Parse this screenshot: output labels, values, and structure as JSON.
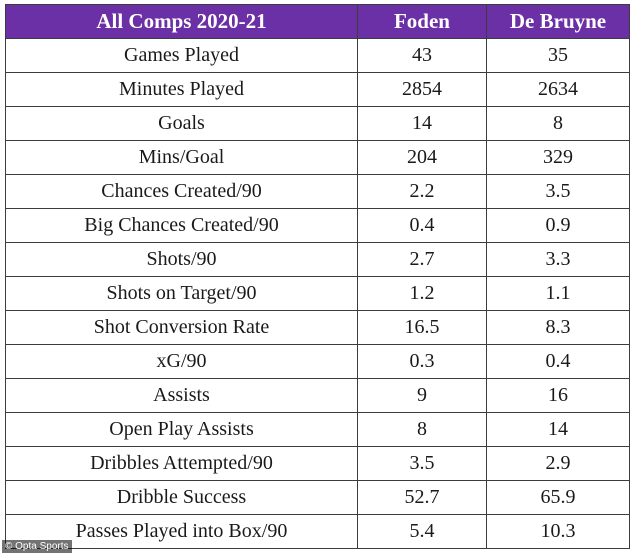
{
  "table": {
    "headers": [
      "All Comps 2020-21",
      "Foden",
      "De Bruyne"
    ],
    "rows": [
      [
        "Games Played",
        "43",
        "35"
      ],
      [
        "Minutes Played",
        "2854",
        "2634"
      ],
      [
        "Goals",
        "14",
        "8"
      ],
      [
        "Mins/Goal",
        "204",
        "329"
      ],
      [
        "Chances Created/90",
        "2.2",
        "3.5"
      ],
      [
        "Big Chances Created/90",
        "0.4",
        "0.9"
      ],
      [
        "Shots/90",
        "2.7",
        "3.3"
      ],
      [
        "Shots on Target/90",
        "1.2",
        "1.1"
      ],
      [
        "Shot Conversion Rate",
        "16.5",
        "8.3"
      ],
      [
        "xG/90",
        "0.3",
        "0.4"
      ],
      [
        "Assists",
        "9",
        "16"
      ],
      [
        "Open Play Assists",
        "8",
        "14"
      ],
      [
        "Dribbles Attempted/90",
        "3.5",
        "2.9"
      ],
      [
        "Dribble Success",
        "52.7",
        "65.9"
      ],
      [
        "Passes Played into Box/90",
        "5.4",
        "10.3"
      ]
    ]
  },
  "credit": "© Opta Sports",
  "colors": {
    "header_bg": "#6b2fa6",
    "header_text": "#ffffff",
    "border": "#3c3c3c"
  }
}
